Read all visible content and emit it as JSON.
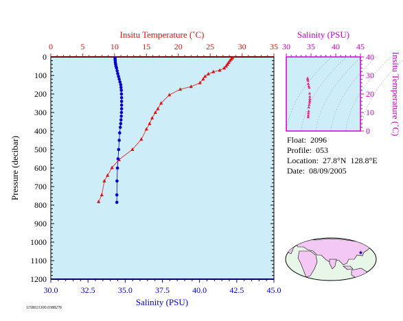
{
  "colors": {
    "plot_bg": "#cdeef8",
    "axis_blue": "#0000cc",
    "temp_red": "#e01010",
    "salinity_magenta": "#cc00cc",
    "ts_points": "#e0308a",
    "land": "#f4c8f4",
    "ocean": "#e8f6e8"
  },
  "info": {
    "float_label": "Float:",
    "float_value": "2096",
    "profile_label": "Profile:",
    "profile_value": "053",
    "location_label": "Location:",
    "location_value": "27.8°N  128.8°E",
    "date_label": "Date:",
    "date_value": "08/09/2005"
  },
  "footer_code": "1158021300.0388276",
  "chart_data": [
    {
      "type": "line",
      "name": "profile",
      "ylabel": "Pressure (decibar)",
      "ylim": [
        0,
        1200
      ],
      "y_inverted": true,
      "y_ticks": [
        0,
        100,
        200,
        300,
        400,
        500,
        600,
        700,
        800,
        900,
        1000,
        1100,
        1200
      ],
      "bottom_axis": {
        "label": "Salinity (PSU)",
        "lim": [
          30.0,
          45.0
        ],
        "ticks": [
          "30.0",
          "32.5",
          "35.0",
          "37.5",
          "40.0",
          "42.5",
          "45.0"
        ]
      },
      "top_axis": {
        "label": "Insitu Temperature (˚C)",
        "lim": [
          0,
          35
        ],
        "ticks": [
          "0",
          "5",
          "10",
          "15",
          "20",
          "25",
          "30",
          "35"
        ]
      },
      "series": [
        {
          "key": "salinity",
          "axis": "bottom",
          "marker": "circle",
          "points": [
            [
              34.32,
              5
            ],
            [
              34.32,
              12
            ],
            [
              34.33,
              20
            ],
            [
              34.34,
              30
            ],
            [
              34.36,
              40
            ],
            [
              34.38,
              50
            ],
            [
              34.42,
              60
            ],
            [
              34.46,
              75
            ],
            [
              34.5,
              90
            ],
            [
              34.55,
              105
            ],
            [
              34.6,
              120
            ],
            [
              34.65,
              135
            ],
            [
              34.7,
              150
            ],
            [
              34.72,
              165
            ],
            [
              34.74,
              180
            ],
            [
              34.75,
              200
            ],
            [
              34.76,
              220
            ],
            [
              34.76,
              240
            ],
            [
              34.76,
              260
            ],
            [
              34.76,
              280
            ],
            [
              34.75,
              300
            ],
            [
              34.74,
              320
            ],
            [
              34.72,
              340
            ],
            [
              34.7,
              360
            ],
            [
              34.67,
              380
            ],
            [
              34.63,
              410
            ],
            [
              34.6,
              450
            ],
            [
              34.56,
              500
            ],
            [
              34.52,
              550
            ],
            [
              34.48,
              600
            ],
            [
              34.45,
              670
            ],
            [
              34.44,
              745
            ],
            [
              34.44,
              785
            ]
          ]
        },
        {
          "key": "temperature",
          "axis": "top",
          "marker": "triangle",
          "points": [
            [
              28.5,
              5
            ],
            [
              28.3,
              12
            ],
            [
              28.1,
              20
            ],
            [
              27.9,
              30
            ],
            [
              27.7,
              40
            ],
            [
              27.5,
              50
            ],
            [
              27.2,
              60
            ],
            [
              26.5,
              72
            ],
            [
              25.5,
              80
            ],
            [
              24.7,
              92
            ],
            [
              24.2,
              105
            ],
            [
              23.9,
              120
            ],
            [
              23.4,
              140
            ],
            [
              22.0,
              160
            ],
            [
              20.3,
              175
            ],
            [
              18.6,
              205
            ],
            [
              17.3,
              250
            ],
            [
              16.8,
              280
            ],
            [
              16.4,
              300
            ],
            [
              15.9,
              330
            ],
            [
              15.5,
              360
            ],
            [
              15.0,
              390
            ],
            [
              14.2,
              445
            ],
            [
              12.8,
              500
            ],
            [
              10.7,
              555
            ],
            [
              9.6,
              598
            ],
            [
              8.9,
              640
            ],
            [
              8.4,
              670
            ],
            [
              8.0,
              745
            ],
            [
              7.5,
              782
            ]
          ]
        }
      ]
    },
    {
      "type": "scatter",
      "name": "ts_diagram",
      "top_axis": {
        "label": "Salinity (PSU)",
        "lim": [
          30,
          45
        ],
        "ticks": [
          "30",
          "35",
          "40",
          "45"
        ]
      },
      "right_axis": {
        "label": "Insitu Temperature (˚C)",
        "lim": [
          0,
          40
        ],
        "ticks": [
          "0",
          "10",
          "20",
          "30",
          "40"
        ]
      },
      "density_contours": true,
      "points": [
        [
          34.32,
          28.5
        ],
        [
          34.34,
          27.9
        ],
        [
          34.38,
          27.2
        ],
        [
          34.46,
          25.5
        ],
        [
          34.55,
          24.2
        ],
        [
          34.65,
          23.4
        ],
        [
          34.72,
          20.3
        ],
        [
          34.76,
          18.6
        ],
        [
          34.76,
          17.3
        ],
        [
          34.75,
          16.4
        ],
        [
          34.72,
          15.5
        ],
        [
          34.63,
          14.2
        ],
        [
          34.56,
          12.8
        ],
        [
          34.52,
          10.7
        ],
        [
          34.48,
          9.6
        ],
        [
          34.45,
          8.4
        ],
        [
          34.44,
          7.5
        ]
      ]
    },
    {
      "type": "map",
      "name": "location_map",
      "region": "world",
      "marker": {
        "lat": 27.8,
        "lon": 128.8,
        "symbol": "star"
      }
    }
  ]
}
